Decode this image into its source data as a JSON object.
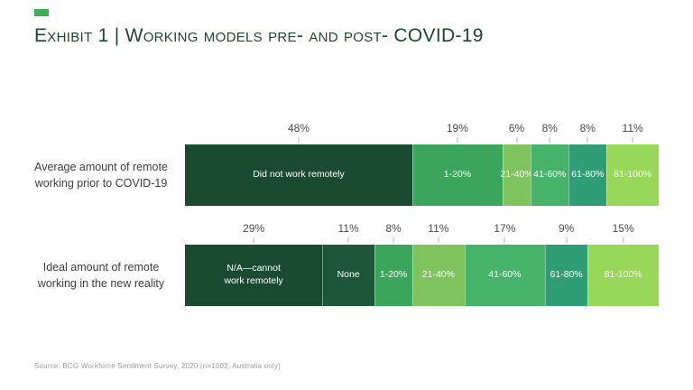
{
  "accent_color": "#3fae55",
  "title": {
    "exhibit_label": "Exhibit 1",
    "separator": "|",
    "title_text": "Working models pre- and post- COVID-19",
    "full": "Exhibit 1 | Working models pre- and post- COVID-19"
  },
  "source": "Source: BCG Workforce Sentiment Survey, 2020 (n=1002, Australia only)",
  "chart_data": {
    "type": "bar",
    "subtype": "horizontal-stacked-100",
    "unit": "%",
    "title": "Working models pre- and post- COVID-19",
    "legend_position": "none",
    "rows": [
      {
        "label": "Average amount of remote\nworking prior to COVID-19",
        "segments": [
          {
            "category": "Did not work remotely",
            "value": 48,
            "value_label": "48%",
            "bar_label": "Did not work remotely",
            "color": "#1a4b31"
          },
          {
            "category": "1-20%",
            "value": 19,
            "value_label": "19%",
            "bar_label": "1-20%",
            "color": "#3ba55c"
          },
          {
            "category": "21-40%",
            "value": 6,
            "value_label": "6%",
            "bar_label": "21-40%",
            "color": "#7ec35e"
          },
          {
            "category": "41-60%",
            "value": 8,
            "value_label": "8%",
            "bar_label": "41-60%",
            "color": "#47b26a"
          },
          {
            "category": "61-80%",
            "value": 8,
            "value_label": "8%",
            "bar_label": "61-80%",
            "color": "#2f9e77"
          },
          {
            "category": "81-100%",
            "value": 11,
            "value_label": "11%",
            "bar_label": "81-100%",
            "color": "#97d75a"
          }
        ]
      },
      {
        "label": "Ideal amount of remote\nworking in the new reality",
        "segments": [
          {
            "category": "N/A—cannot work remotely",
            "value": 29,
            "value_label": "29%",
            "bar_label": "N/A—cannot\nwork remotely",
            "color": "#1a4b31"
          },
          {
            "category": "None",
            "value": 11,
            "value_label": "11%",
            "bar_label": "None",
            "color": "#1d5638"
          },
          {
            "category": "1-20%",
            "value": 8,
            "value_label": "8%",
            "bar_label": "1-20%",
            "color": "#3ba55c"
          },
          {
            "category": "21-40%",
            "value": 11,
            "value_label": "11%",
            "bar_label": "21-40%",
            "color": "#7ec35e"
          },
          {
            "category": "41-60%",
            "value": 17,
            "value_label": "17%",
            "bar_label": "41-60%",
            "color": "#47b26a"
          },
          {
            "category": "61-80%",
            "value": 9,
            "value_label": "9%",
            "bar_label": "61-80%",
            "color": "#2f9e77"
          },
          {
            "category": "81-100%",
            "value": 15,
            "value_label": "15%",
            "bar_label": "81-100%",
            "color": "#97d75a"
          }
        ]
      }
    ]
  }
}
